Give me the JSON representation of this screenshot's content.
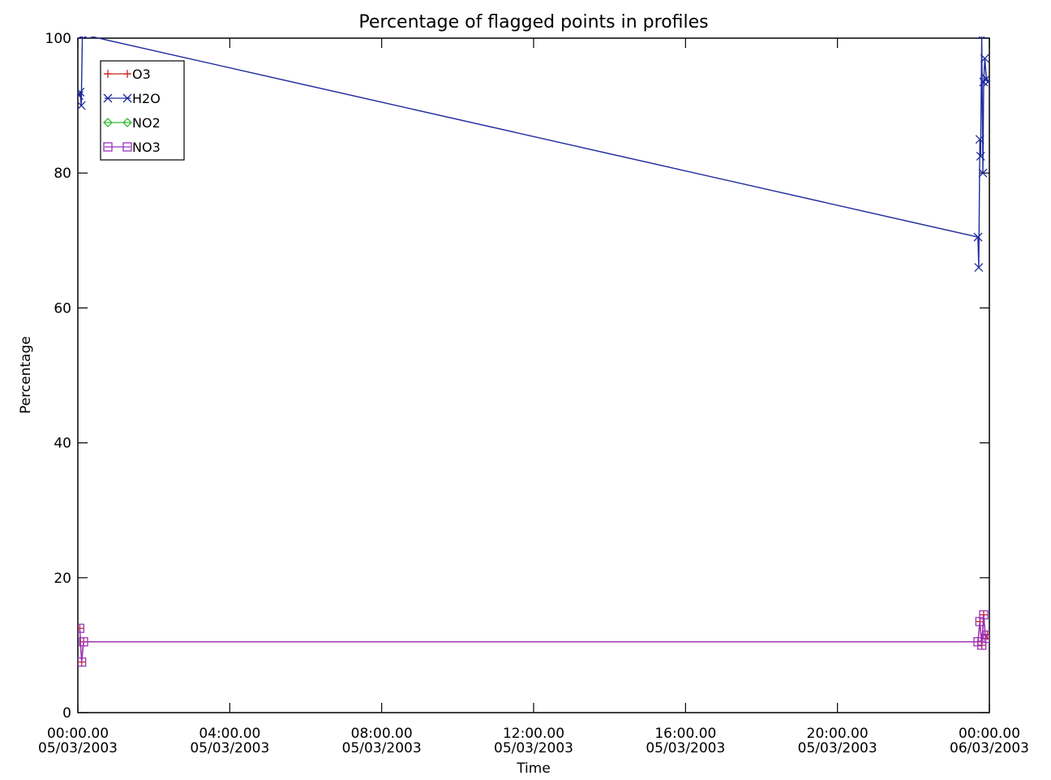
{
  "chart_data": {
    "type": "line",
    "title": "Percentage of flagged points in profiles",
    "xlabel": "Time",
    "ylabel": "Percentage",
    "xlim_hours": [
      0,
      24
    ],
    "ylim": [
      0,
      100
    ],
    "grid": false,
    "legend_position": "top-left",
    "xticks": [
      {
        "h": 0,
        "time": "00:00.00",
        "date": "05/03/2003"
      },
      {
        "h": 4,
        "time": "04:00.00",
        "date": "05/03/2003"
      },
      {
        "h": 8,
        "time": "08:00.00",
        "date": "05/03/2003"
      },
      {
        "h": 12,
        "time": "12:00.00",
        "date": "05/03/2003"
      },
      {
        "h": 16,
        "time": "16:00.00",
        "date": "05/03/2003"
      },
      {
        "h": 20,
        "time": "20:00.00",
        "date": "05/03/2003"
      },
      {
        "h": 24,
        "time": "00:00.00",
        "date": "06/03/2003"
      }
    ],
    "yticks": [
      0,
      20,
      40,
      60,
      80,
      100
    ],
    "series": [
      {
        "name": "O3",
        "legend_label": "O3",
        "color": "#cc2222",
        "marker": "plus",
        "x": [
          0.05,
          0.1,
          0.15,
          23.7,
          23.75,
          23.8,
          23.85,
          23.9,
          23.95
        ],
        "y": [
          12.5,
          7.5,
          10.5,
          10.5,
          13.5,
          10.0,
          14.5,
          11.0,
          11.5
        ]
      },
      {
        "name": "H2O",
        "legend_label": "H2O",
        "color": "#1f2a9c",
        "marker": "x",
        "x": [
          0.03,
          0.06,
          0.09,
          0.12,
          0.15,
          23.7,
          23.72,
          23.75,
          23.77,
          23.8,
          23.83,
          23.85,
          23.88,
          23.92,
          23.96
        ],
        "y": [
          91.5,
          92.0,
          90.0,
          100.5,
          100.5,
          70.5,
          66.0,
          85.0,
          82.5,
          100.5,
          80.0,
          93.5,
          97.0,
          94.0,
          93.5
        ]
      },
      {
        "name": "NO2",
        "legend_label": "NO2",
        "color": "#33bb33",
        "marker": "diamond",
        "x": [],
        "y": []
      },
      {
        "name": "NO3",
        "legend_label": "NO3",
        "color": "#9933bb",
        "marker": "square",
        "x": [
          0.05,
          0.1,
          0.15,
          23.7,
          23.75,
          23.8,
          23.85,
          23.9,
          23.95
        ],
        "y": [
          12.5,
          7.5,
          10.5,
          10.5,
          13.5,
          10.0,
          14.5,
          11.0,
          11.5
        ]
      }
    ]
  }
}
